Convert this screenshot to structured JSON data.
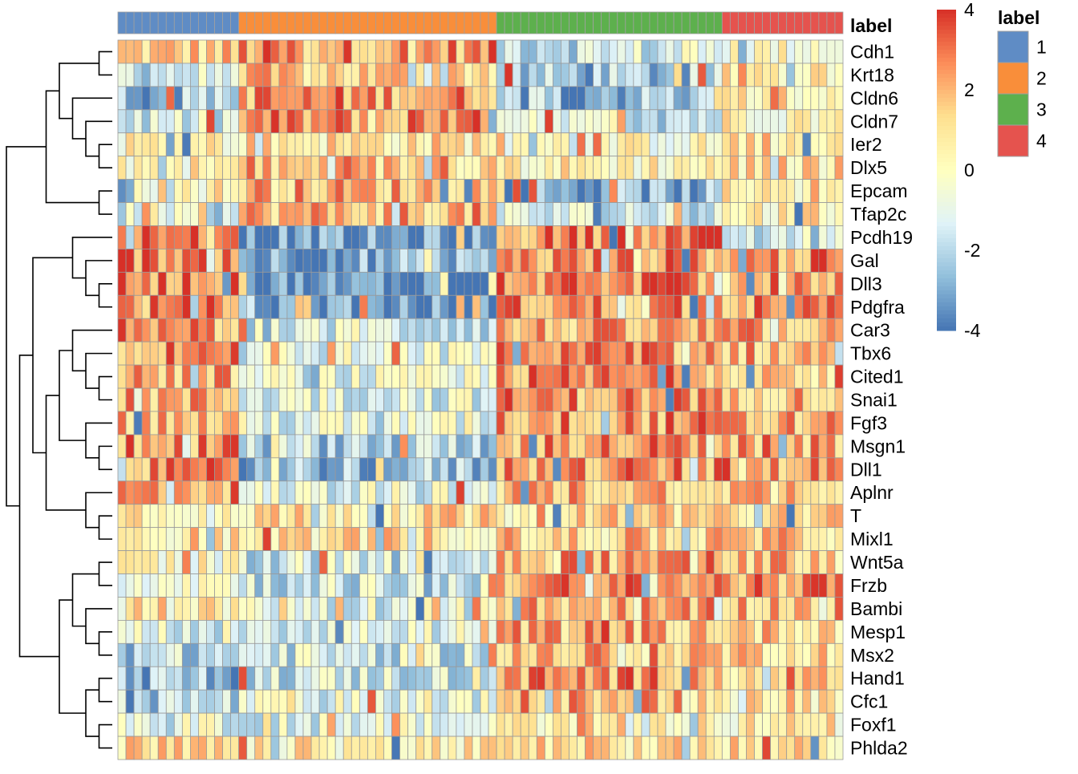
{
  "chart_data": {
    "type": "heatmap",
    "genes": [
      "Cdh1",
      "Krt18",
      "Cldn6",
      "Cldn7",
      "Ier2",
      "Dlx5",
      "Epcam",
      "Tfap2c",
      "Pcdh19",
      "Gal",
      "Dll3",
      "Pdgfra",
      "Car3",
      "Tbx6",
      "Cited1",
      "Snai1",
      "Fgf3",
      "Msgn1",
      "Dll1",
      "Aplnr",
      "T",
      "Mixl1",
      "Wnt5a",
      "Frzb",
      "Bambi",
      "Mesp1",
      "Msx2",
      "Hand1",
      "Cfc1",
      "Foxf1",
      "Phlda2"
    ],
    "cell_count": 90,
    "cluster_sizes": [
      15,
      32,
      28,
      15
    ],
    "annotation": {
      "title": "label",
      "groups": [
        {
          "label": "1",
          "color": "#5F8CC5"
        },
        {
          "label": "2",
          "color": "#F98E3A"
        },
        {
          "label": "3",
          "color": "#5DB04D"
        },
        {
          "label": "4",
          "color": "#E5534E"
        }
      ]
    },
    "gene_profiles": {
      "Cdh1": [
        1.5,
        2.5,
        -1.5,
        0.0
      ],
      "Krt18": [
        -1.5,
        1.5,
        -2.5,
        1.0
      ],
      "Cldn6": [
        -2.5,
        2.5,
        -2.5,
        0.5
      ],
      "Cldn7": [
        -1.5,
        2.5,
        -1.5,
        0.5
      ],
      "Ier2": [
        0.5,
        1.0,
        0.0,
        1.0
      ],
      "Dlx5": [
        0.5,
        1.5,
        0.5,
        1.0
      ],
      "Epcam": [
        0.5,
        2.0,
        -3.0,
        1.0
      ],
      "Tfap2c": [
        -1.5,
        2.0,
        -1.5,
        0.5
      ],
      "Pcdh19": [
        3.5,
        -3.5,
        3.0,
        -1.5
      ],
      "Gal": [
        3.0,
        -3.0,
        2.5,
        2.5
      ],
      "Dll3": [
        3.0,
        -3.5,
        3.0,
        2.5
      ],
      "Pdgfra": [
        2.5,
        -3.5,
        2.5,
        2.5
      ],
      "Car3": [
        2.5,
        -1.5,
        2.0,
        2.0
      ],
      "Tbx6": [
        2.5,
        -1.0,
        2.5,
        2.0
      ],
      "Cited1": [
        2.0,
        -1.0,
        2.5,
        2.0
      ],
      "Snai1": [
        2.0,
        -1.0,
        2.5,
        2.0
      ],
      "Fgf3": [
        2.0,
        -1.0,
        2.5,
        2.0
      ],
      "Msgn1": [
        2.5,
        -2.0,
        2.5,
        2.0
      ],
      "Dll1": [
        2.5,
        -2.5,
        2.5,
        2.5
      ],
      "Aplnr": [
        2.5,
        -1.0,
        2.0,
        2.0
      ],
      "T": [
        1.0,
        1.0,
        1.5,
        1.0
      ],
      "Mixl1": [
        1.0,
        1.0,
        1.5,
        1.5
      ],
      "Wnt5a": [
        0.0,
        -1.5,
        2.5,
        2.0
      ],
      "Frzb": [
        0.0,
        -1.5,
        2.5,
        2.5
      ],
      "Bambi": [
        0.5,
        -1.0,
        2.0,
        2.0
      ],
      "Mesp1": [
        -1.0,
        -1.0,
        2.0,
        1.5
      ],
      "Msx2": [
        -2.0,
        -1.5,
        2.0,
        1.5
      ],
      "Hand1": [
        -2.5,
        -1.5,
        2.5,
        1.5
      ],
      "Cfc1": [
        -2.0,
        -1.0,
        2.0,
        1.0
      ],
      "Foxf1": [
        -1.0,
        -1.0,
        1.0,
        0.5
      ],
      "Phlda2": [
        1.0,
        0.5,
        1.0,
        1.0
      ]
    },
    "color_scale": {
      "min": -4,
      "max": 4,
      "ticks": [
        "4",
        "2",
        "0",
        "-2",
        "-4"
      ],
      "colors": [
        "#4575B4",
        "#91BFDB",
        "#E0F3F8",
        "#FFFFBF",
        "#FEE090",
        "#FC8D59",
        "#D73027"
      ]
    },
    "row_dendrogram": true,
    "grid": true
  }
}
